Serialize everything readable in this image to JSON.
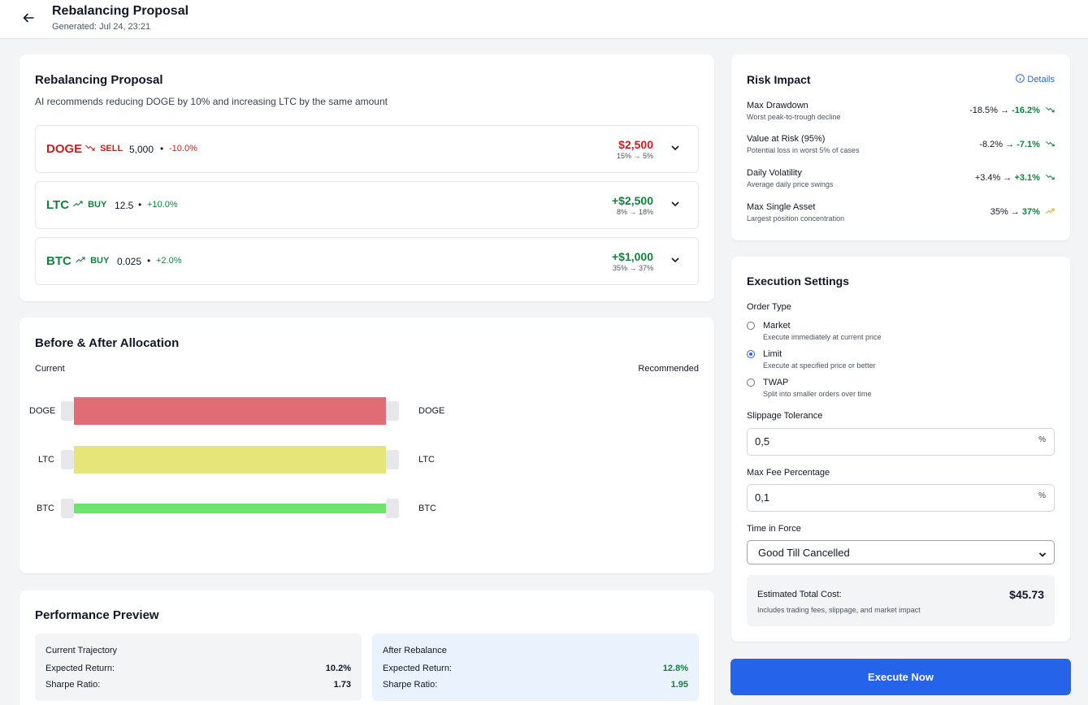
{
  "header": {
    "title": "Rebalancing Proposal",
    "generated": "Generated: Jul 24, 23:21"
  },
  "proposal": {
    "title": "Rebalancing Proposal",
    "summary": "AI recommends reducing DOGE by 10% and increasing LTC by the same amount",
    "trades": [
      {
        "symbol": "DOGE",
        "side": "SELL",
        "quantity": "5,000",
        "change": "-10.0%",
        "amount": "$2,500",
        "allocation": "15% → 5%",
        "direction": "down"
      },
      {
        "symbol": "LTC",
        "side": "BUY",
        "quantity": "12.5",
        "change": "+10.0%",
        "amount": "+$2,500",
        "allocation": "8% → 18%",
        "direction": "up"
      },
      {
        "symbol": "BTC",
        "side": "BUY",
        "quantity": "0.025",
        "change": "+2.0%",
        "amount": "+$1,000",
        "allocation": "35% → 37%",
        "direction": "up"
      }
    ]
  },
  "allocation": {
    "title": "Before & After Allocation",
    "current_label": "Current",
    "recommended_label": "Recommended",
    "rows": [
      {
        "left": "DOGE",
        "right": "DOGE",
        "color": "#e06c75"
      },
      {
        "left": "LTC",
        "right": "LTC",
        "color": "#e5e57a"
      },
      {
        "left": "BTC",
        "right": "BTC",
        "color": "#6ee46e"
      }
    ]
  },
  "performance": {
    "title": "Performance Preview",
    "current": {
      "title": "Current Trajectory",
      "return_label": "Expected Return:",
      "return_value": "10.2%",
      "sharpe_label": "Sharpe Ratio:",
      "sharpe_value": "1.73"
    },
    "after": {
      "title": "After Rebalance",
      "return_label": "Expected Return:",
      "return_value": "12.8%",
      "sharpe_label": "Sharpe Ratio:",
      "sharpe_value": "1.95"
    }
  },
  "risk": {
    "title": "Risk Impact",
    "details_label": "Details",
    "items": [
      {
        "name": "Max Drawdown",
        "desc": "Worst peak-to-trough decline",
        "before": "-18.5% →",
        "after": "-16.2%",
        "trend": "down",
        "color": "#15803d"
      },
      {
        "name": "Value at Risk (95%)",
        "desc": "Potential loss in worst 5% of cases",
        "before": "-8.2% →",
        "after": "-7.1%",
        "trend": "down",
        "color": "#15803d"
      },
      {
        "name": "Daily Volatility",
        "desc": "Average daily price swings",
        "before": "+3.4% →",
        "after": "+3.1%",
        "trend": "down",
        "color": "#15803d"
      },
      {
        "name": "Max Single Asset",
        "desc": "Largest position concentration",
        "before": "35% →",
        "after": "37%",
        "trend": "up",
        "color": "#15803d",
        "trend_color": "#f59e0b"
      }
    ]
  },
  "execution": {
    "title": "Execution Settings",
    "order_type_label": "Order Type",
    "order_types": [
      {
        "name": "Market",
        "desc": "Execute immediately at current price",
        "selected": false
      },
      {
        "name": "Limit",
        "desc": "Execute at specified price or better",
        "selected": true
      },
      {
        "name": "TWAP",
        "desc": "Split into smaller orders over time",
        "selected": false
      }
    ],
    "slippage_label": "Slippage Tolerance",
    "slippage_value": "0,5",
    "max_fee_label": "Max Fee Percentage",
    "max_fee_value": "0,1",
    "percent_unit": "%",
    "time_in_force_label": "Time in Force",
    "time_in_force_value": "Good Till Cancelled",
    "cost_label": "Estimated Total Cost:",
    "cost_value": "$45.73",
    "cost_note": "Includes trading fees, slippage, and market impact",
    "execute_label": "Execute Now"
  }
}
